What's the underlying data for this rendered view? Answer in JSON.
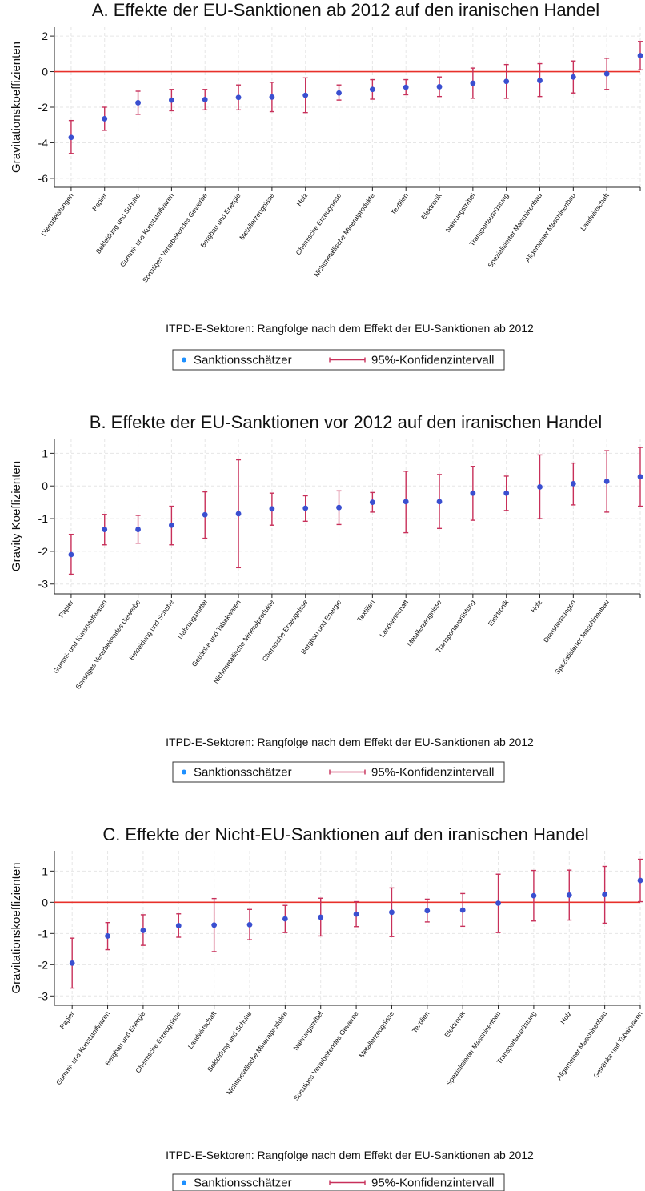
{
  "colors": {
    "point": "#3a4fd0",
    "ci": "#c8305a",
    "zero_line": "#e8302a",
    "grid": "#e6e6e6",
    "axis": "#222222",
    "legend_point": "#1e90ff"
  },
  "chart_data": [
    {
      "type": "scatter",
      "title": "A. Effekte der EU-Sanktionen ab 2012 auf den iranischen Handel",
      "ylabel": "Gravitationskoeffizienten",
      "xlabel": "ITPD-E-Sektoren: Rangfolge nach dem Effekt der EU-Sanktionen ab 2012",
      "ylim": [
        -6.5,
        2.5
      ],
      "yticks": [
        2,
        0,
        -2,
        -4,
        -6
      ],
      "ytick_labels": [
        "2",
        "0",
        "-2",
        "-4",
        "-6"
      ],
      "zero_line": true,
      "categories": [
        "Dienstleistungen",
        "Papier",
        "Bekleidung und Schuhe",
        "Gummi- und Kunststoffwaren",
        "Sonstiges Verarbeitendes Gewerbe",
        "Bergbau und Energie",
        "Metallerzeugnisse",
        "Holz",
        "Chemische Erzeugnisse",
        "Nichtmetallische Mineralprodukte",
        "Textilien",
        "Elektronik",
        "Nahrungsmittel",
        "Transportausrüstung",
        "Spezialisierter Maschinenbau",
        "Allgemeiner Maschinenbau",
        "Landwirtschaft",
        ""
      ],
      "values": [
        -3.7,
        -2.65,
        -1.75,
        -1.6,
        -1.57,
        -1.45,
        -1.43,
        -1.33,
        -1.2,
        -1.0,
        -0.88,
        -0.85,
        -0.65,
        -0.55,
        -0.5,
        -0.3,
        -0.12,
        0.9
      ],
      "ci_low": [
        -4.6,
        -3.3,
        -2.4,
        -2.2,
        -2.15,
        -2.15,
        -2.25,
        -2.3,
        -1.6,
        -1.55,
        -1.3,
        -1.4,
        -1.5,
        -1.5,
        -1.4,
        -1.2,
        -1.0,
        0.1
      ],
      "ci_high": [
        -2.75,
        -2.0,
        -1.1,
        -1.0,
        -1.0,
        -0.75,
        -0.6,
        -0.35,
        -0.75,
        -0.45,
        -0.45,
        -0.3,
        0.2,
        0.4,
        0.45,
        0.6,
        0.75,
        1.7
      ],
      "legend": [
        "Sanktionsschätzer",
        "95%-Konfidenzintervall"
      ]
    },
    {
      "type": "scatter",
      "title": "B. Effekte der EU-Sanktionen vor 2012 auf den iranischen Handel",
      "ylabel": "Gravity Koeffizienten",
      "xlabel": "ITPD-E-Sektoren: Rangfolge nach dem Effekt der EU-Sanktionen ab 2012",
      "ylim": [
        -3.3,
        1.45
      ],
      "yticks": [
        1,
        0,
        -1,
        -2,
        -3
      ],
      "ytick_labels": [
        "1",
        "0",
        "-1",
        "-2",
        "-3"
      ],
      "zero_line": false,
      "categories": [
        "Papier",
        "Gummi- und Kunststoffwaren",
        "Sonstiges Verarbeitendes Gewerbe",
        "Bekleidung und Schuhe",
        "Nahrungsmittel",
        "Getränke und Tabakwaren",
        "Nichtmetallische Mineralprodukte",
        "Chemische Erzeugnisse",
        "Bergbau und Energie",
        "Textilien",
        "Landwirtschaft",
        "Metallerzeugnisse",
        "Transportausrüstung",
        "Elektronik",
        "Holz",
        "Dienstleistungen",
        "Spezialisierter Maschinenbau",
        ""
      ],
      "values": [
        -2.1,
        -1.33,
        -1.33,
        -1.2,
        -0.88,
        -0.85,
        -0.7,
        -0.68,
        -0.66,
        -0.5,
        -0.48,
        -0.48,
        -0.22,
        -0.22,
        -0.03,
        0.07,
        0.14,
        0.28
      ],
      "ci_low": [
        -2.7,
        -1.8,
        -1.75,
        -1.8,
        -1.6,
        -2.5,
        -1.2,
        -1.08,
        -1.18,
        -0.8,
        -1.43,
        -1.3,
        -1.05,
        -0.75,
        -1.0,
        -0.58,
        -0.8,
        -0.62
      ],
      "ci_high": [
        -1.48,
        -0.87,
        -0.9,
        -0.62,
        -0.18,
        0.8,
        -0.22,
        -0.3,
        -0.15,
        -0.2,
        0.45,
        0.35,
        0.6,
        0.3,
        0.95,
        0.7,
        1.08,
        1.18
      ],
      "legend": [
        "Sanktionsschätzer",
        "95%-Konfidenzintervall"
      ]
    },
    {
      "type": "scatter",
      "title": "C. Effekte der Nicht-EU-Sanktionen auf den iranischen Handel",
      "ylabel": "Gravitationskoeffizienten",
      "xlabel": "ITPD-E-Sektoren: Rangfolge nach dem Effekt der EU-Sanktionen ab 2012",
      "ylim": [
        -3.3,
        1.65
      ],
      "yticks": [
        1,
        0,
        -1,
        -2,
        -3
      ],
      "ytick_labels": [
        "1",
        "0",
        "-1",
        "-2",
        "-3"
      ],
      "zero_line": true,
      "categories": [
        "Papier",
        "Gummi- und Kunststoffwaren",
        "Bergbau und Energie",
        "Chemische Erzeugnisse",
        "Landwirtschaft",
        "Bekleidung und Schuhe",
        "Nichtmetallische Mineralprodukte",
        "Nahrungsmittel",
        "Sonstiges Verarbeitendes Gewerbe",
        "Metallerzeugnisse",
        "Textilien",
        "Elektronik",
        "Spezialisierter Maschinenbau",
        "Transportausrüstung",
        "Holz",
        "Allgemeiner Maschinenbau",
        "Getränke und Tabakwaren"
      ],
      "values": [
        -1.95,
        -1.08,
        -0.9,
        -0.75,
        -0.73,
        -0.72,
        -0.53,
        -0.48,
        -0.38,
        -0.32,
        -0.27,
        -0.25,
        -0.03,
        0.21,
        0.23,
        0.25,
        0.7
      ],
      "ci_low": [
        -2.75,
        -1.52,
        -1.38,
        -1.12,
        -1.58,
        -1.2,
        -0.97,
        -1.08,
        -0.78,
        -1.1,
        -0.63,
        -0.77,
        -0.97,
        -0.6,
        -0.57,
        -0.67,
        0.02
      ],
      "ci_high": [
        -1.15,
        -0.65,
        -0.4,
        -0.37,
        0.12,
        -0.23,
        -0.1,
        0.13,
        0.02,
        0.46,
        0.1,
        0.28,
        0.9,
        1.02,
        1.03,
        1.15,
        1.38
      ],
      "legend": [
        "Sanktionsschätzer",
        "95%-Konfidenzintervall"
      ]
    }
  ]
}
